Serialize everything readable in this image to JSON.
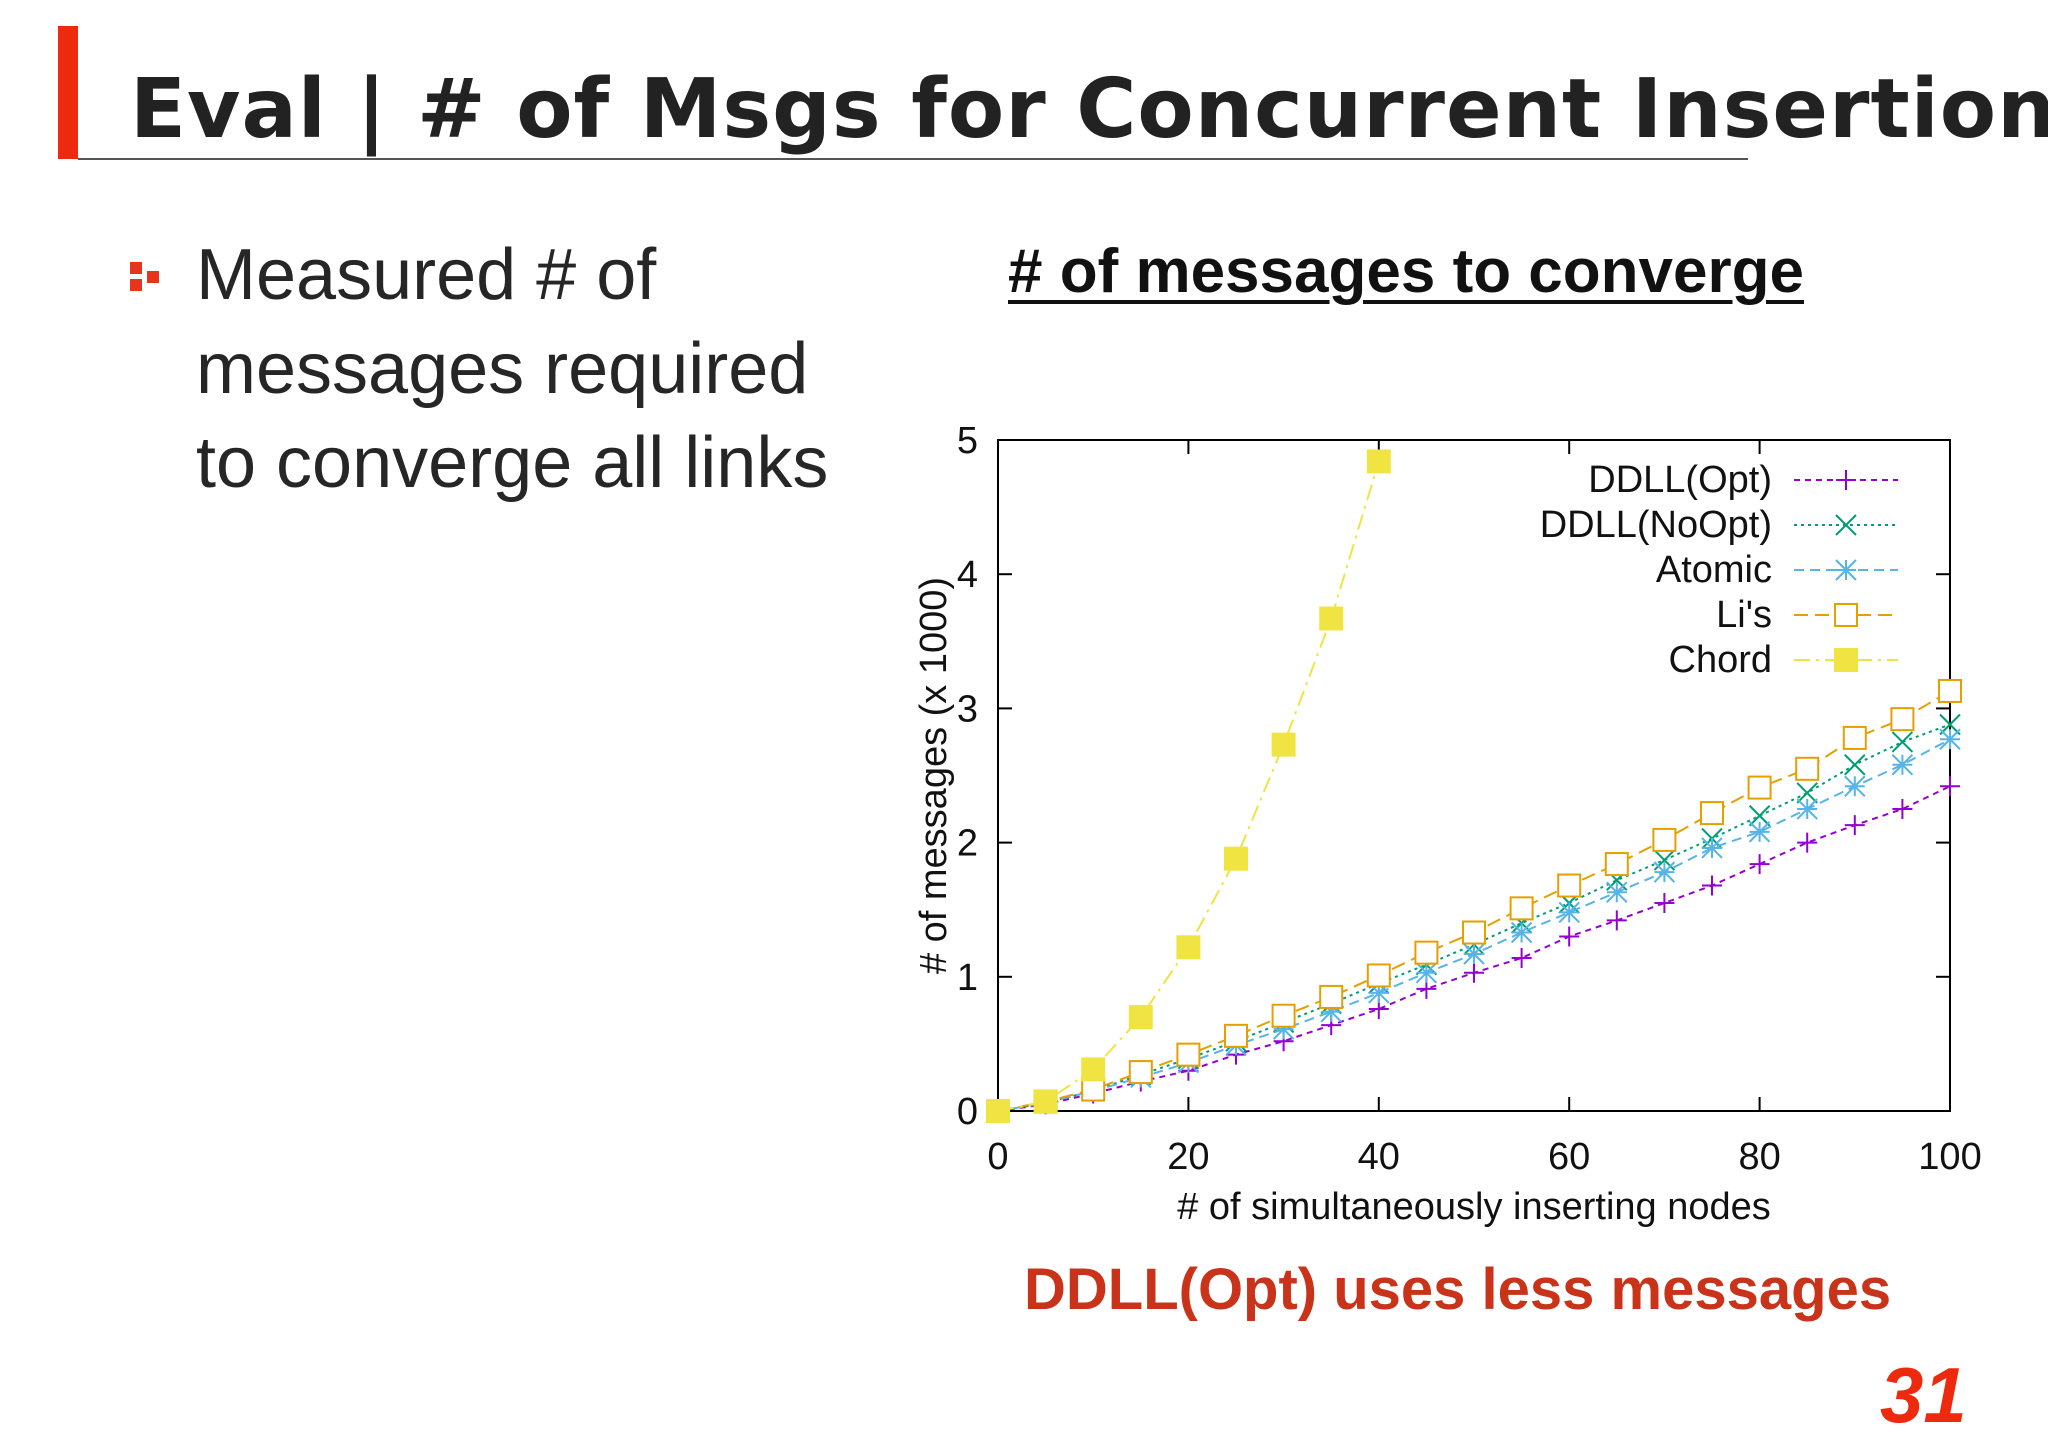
{
  "slide": {
    "title": "Eval | # of Msgs for Concurrent Insertion",
    "bullet": "Measured # of messages required to converge all links",
    "callout": "DDLL(Opt) uses less messages",
    "page_number": "31",
    "accent_color": "#ee2a0e"
  },
  "chart_data": {
    "type": "line",
    "title": "# of messages to converge",
    "xlabel": "# of simultaneously inserting nodes",
    "ylabel": "# of messages (x 1000)",
    "xlim": [
      0,
      100
    ],
    "ylim": [
      0,
      5
    ],
    "xticks": [
      0,
      20,
      40,
      60,
      80,
      100
    ],
    "yticks": [
      0,
      1,
      2,
      3,
      4,
      5
    ],
    "legend_position": "top-right",
    "grid": false,
    "series": [
      {
        "name": "DDLL(Opt)",
        "color": "#9400d3",
        "marker": "plus",
        "dash": "6,5",
        "x": [
          0,
          5,
          10,
          15,
          20,
          25,
          30,
          35,
          40,
          45,
          50,
          55,
          60,
          65,
          70,
          75,
          80,
          85,
          90,
          95,
          100
        ],
        "y": [
          0,
          0.05,
          0.13,
          0.22,
          0.3,
          0.42,
          0.52,
          0.64,
          0.76,
          0.91,
          1.03,
          1.14,
          1.3,
          1.42,
          1.55,
          1.68,
          1.84,
          2.0,
          2.13,
          2.25,
          2.42
        ]
      },
      {
        "name": "DDLL(NoOpt)",
        "color": "#009e73",
        "marker": "x",
        "dash": "3,4",
        "x": [
          0,
          5,
          10,
          15,
          20,
          25,
          30,
          35,
          40,
          45,
          50,
          55,
          60,
          65,
          70,
          75,
          80,
          85,
          90,
          95,
          100
        ],
        "y": [
          0,
          0.06,
          0.15,
          0.27,
          0.39,
          0.52,
          0.66,
          0.8,
          0.95,
          1.09,
          1.24,
          1.4,
          1.55,
          1.72,
          1.87,
          2.03,
          2.2,
          2.37,
          2.58,
          2.75,
          2.88
        ]
      },
      {
        "name": "Atomic",
        "color": "#56b4e9",
        "marker": "star",
        "dash": "10,6",
        "x": [
          0,
          5,
          10,
          15,
          20,
          25,
          30,
          35,
          40,
          45,
          50,
          55,
          60,
          65,
          70,
          75,
          80,
          85,
          90,
          95,
          100
        ],
        "y": [
          0,
          0.06,
          0.15,
          0.25,
          0.36,
          0.49,
          0.61,
          0.74,
          0.88,
          1.03,
          1.17,
          1.33,
          1.48,
          1.63,
          1.78,
          1.96,
          2.08,
          2.25,
          2.42,
          2.58,
          2.77
        ]
      },
      {
        "name": "Li's",
        "color": "#e69f00",
        "marker": "square-open",
        "dash": "14,7",
        "x": [
          0,
          5,
          10,
          15,
          20,
          25,
          30,
          35,
          40,
          45,
          50,
          55,
          60,
          65,
          70,
          75,
          80,
          85,
          90,
          95,
          100
        ],
        "y": [
          0,
          0.07,
          0.16,
          0.29,
          0.42,
          0.56,
          0.71,
          0.85,
          1.01,
          1.18,
          1.33,
          1.51,
          1.68,
          1.84,
          2.02,
          2.22,
          2.41,
          2.55,
          2.78,
          2.92,
          3.13
        ]
      },
      {
        "name": "Chord",
        "color": "#f0e442",
        "marker": "square-filled",
        "dash": "16,6,3,6",
        "x": [
          0,
          5,
          10,
          15,
          20,
          25,
          30,
          35,
          40
        ],
        "y": [
          0,
          0.07,
          0.31,
          0.7,
          1.22,
          1.88,
          2.73,
          3.67,
          4.84
        ]
      }
    ]
  }
}
